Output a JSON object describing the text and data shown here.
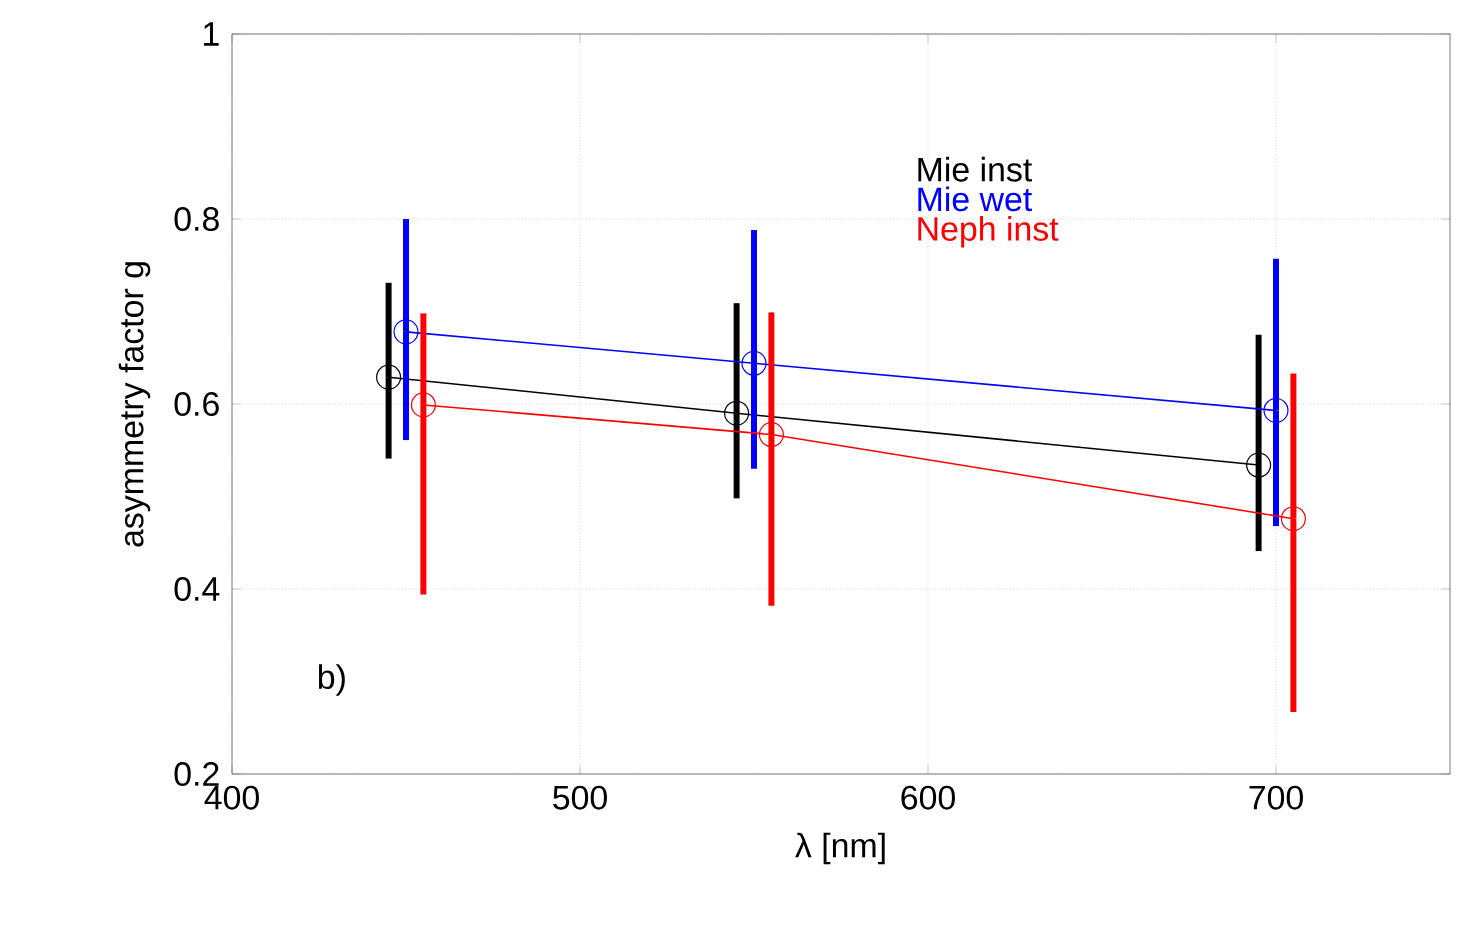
{
  "chart_data": {
    "type": "line",
    "xlabel": "λ [nm]",
    "ylabel": "asymmetry factor g",
    "annotations": [
      "b)"
    ],
    "xlim": [
      400,
      750
    ],
    "ylim": [
      0.2,
      1
    ],
    "xticks": [
      400,
      500,
      600,
      700
    ],
    "yticks": [
      0.2,
      0.4,
      0.6,
      0.8,
      1
    ],
    "grid": true,
    "legend": "top",
    "marker": "circle",
    "line_style": "solid",
    "series": [
      {
        "name": "Mie inst",
        "color": "#000000",
        "x": [
          445,
          545,
          695
        ],
        "values": [
          0.629,
          0.59,
          0.534
        ],
        "errors": [
          [
            0.541,
            0.731
          ],
          [
            0.498,
            0.709
          ],
          [
            0.441,
            0.675
          ]
        ]
      },
      {
        "name": "Mie wet",
        "color": "#0000ff",
        "x": [
          450,
          550,
          700
        ],
        "values": [
          0.678,
          0.644,
          0.593
        ],
        "errors": [
          [
            0.561,
            0.8
          ],
          [
            0.53,
            0.788
          ],
          [
            0.468,
            0.757
          ]
        ]
      },
      {
        "name": "Neph inst",
        "color": "#ff0000",
        "x": [
          455,
          555,
          705
        ],
        "values": [
          0.599,
          0.567,
          0.476
        ],
        "errors": [
          [
            0.394,
            0.698
          ],
          [
            0.382,
            0.699
          ],
          [
            0.267,
            0.633
          ]
        ]
      }
    ]
  }
}
